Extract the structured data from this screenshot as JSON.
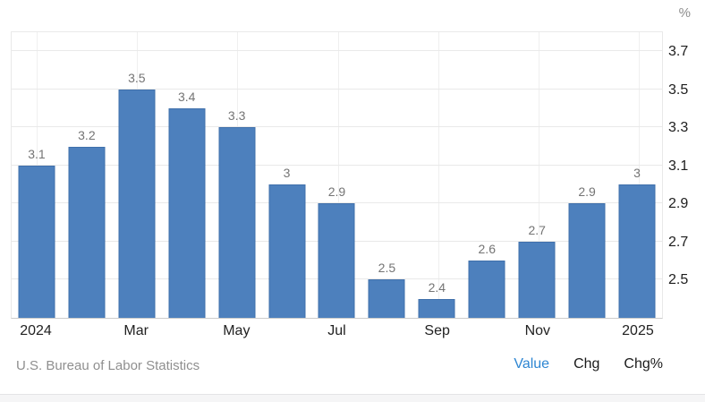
{
  "unit_label": "%",
  "chart_data": {
    "type": "bar",
    "title": "",
    "xlabel": "",
    "ylabel": "%",
    "values": [
      3.1,
      3.2,
      3.5,
      3.4,
      3.3,
      3.0,
      2.9,
      2.5,
      2.4,
      2.6,
      2.7,
      2.9,
      3.0
    ],
    "bar_labels": [
      "3.1",
      "3.2",
      "3.5",
      "3.4",
      "3.3",
      "3",
      "2.9",
      "2.5",
      "2.4",
      "2.6",
      "2.7",
      "2.9",
      "3"
    ],
    "x_tick_labels": [
      "2024",
      "Mar",
      "May",
      "Jul",
      "Sep",
      "Nov",
      "2025"
    ],
    "x_tick_positions": [
      0,
      2,
      4,
      6,
      8,
      10,
      12
    ],
    "y_ticks": [
      2.5,
      2.7,
      2.9,
      3.1,
      3.3,
      3.5,
      3.7
    ],
    "ylim": [
      2.3,
      3.81
    ],
    "grid": true,
    "legend_position": "none",
    "bar_color": "#4d80bd",
    "bar_border_color": "#4070ab"
  },
  "footer": {
    "source": "U.S. Bureau of Labor Statistics",
    "links": [
      {
        "label": "Value",
        "active": true
      },
      {
        "label": "Chg",
        "active": false
      },
      {
        "label": "Chg%",
        "active": false
      }
    ]
  },
  "colors": {
    "accent_blue": "#2e86d2",
    "bar_blue": "#4d80bd",
    "gridline": "#e9e9e9",
    "axis_line": "#cccccc",
    "value_label": "#747474",
    "tick_label": "#1d1d1d",
    "muted_text": "#8f8f8f"
  }
}
